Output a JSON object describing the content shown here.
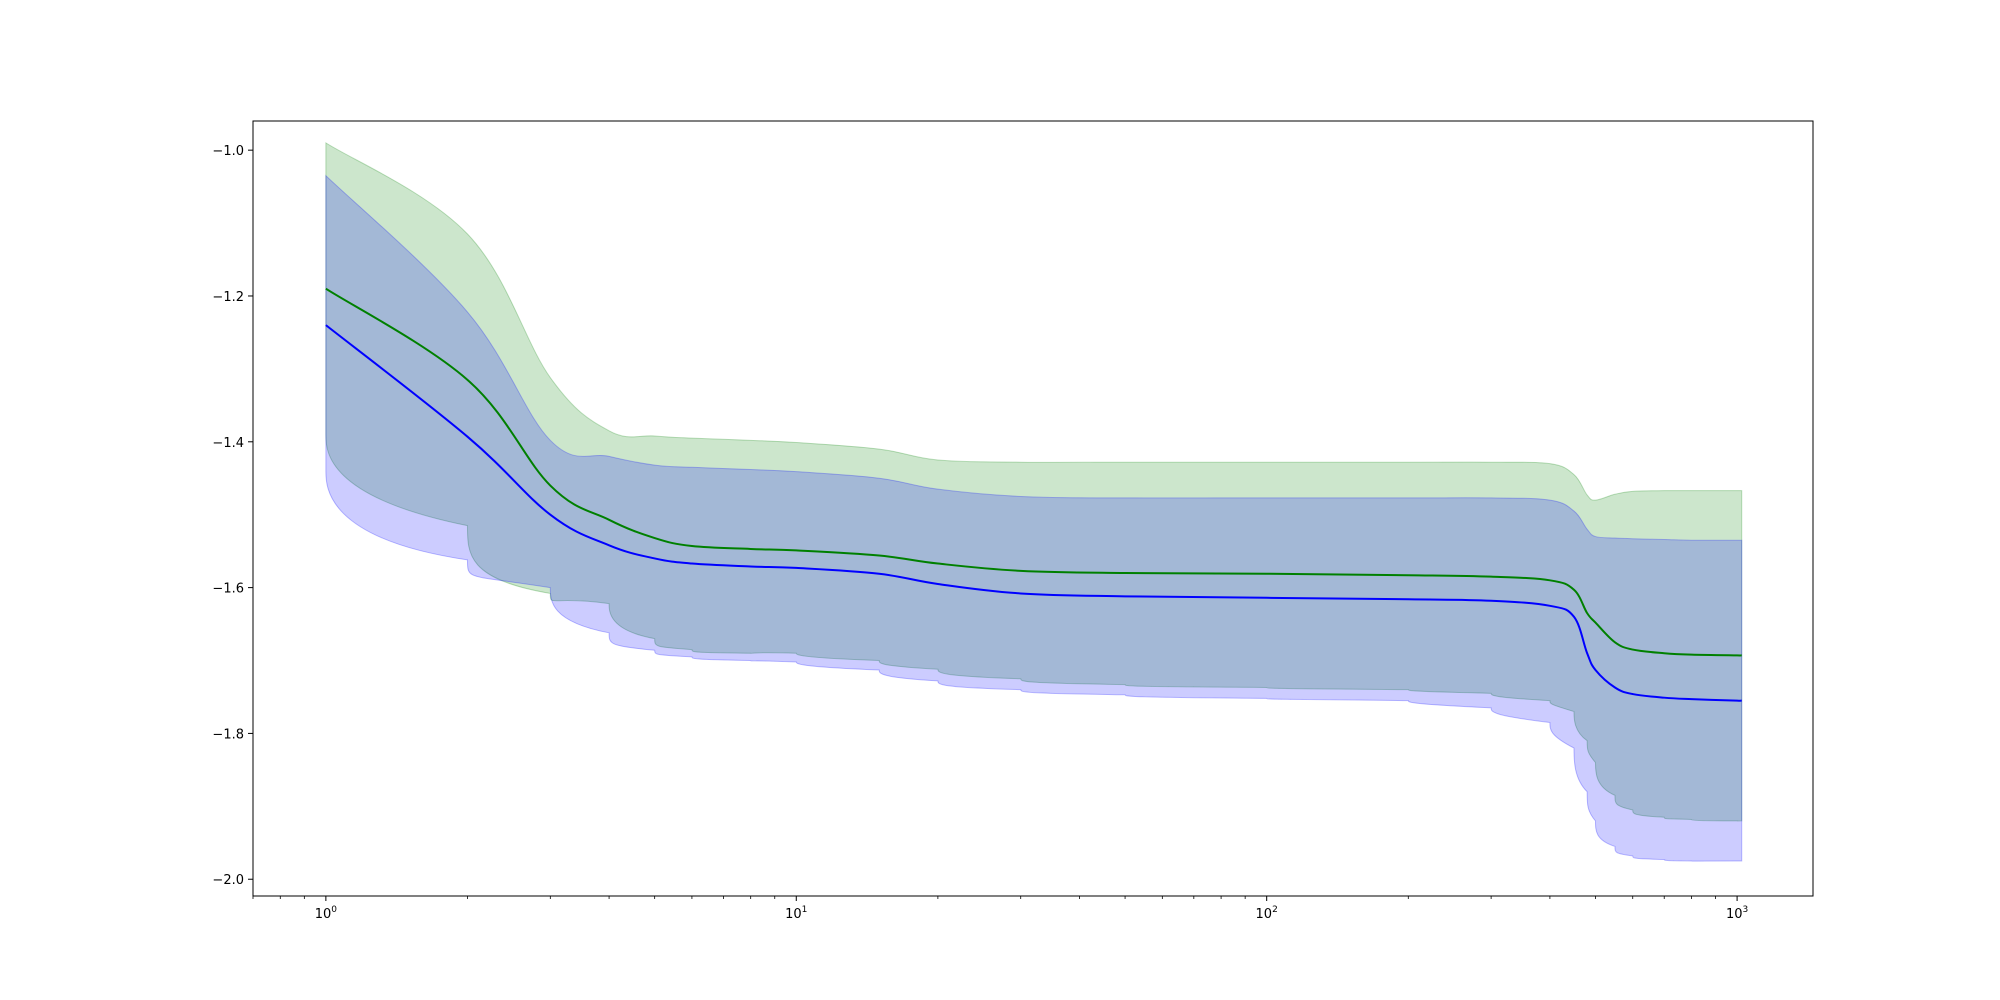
{
  "chart_data": {
    "type": "area",
    "x_scale": "log",
    "xlim": [
      0.7,
      1450
    ],
    "ylim": [
      -2.023,
      -0.96
    ],
    "x": [
      1,
      2,
      3,
      4,
      5,
      6,
      8,
      10,
      15,
      20,
      30,
      50,
      100,
      200,
      300,
      400,
      450,
      480,
      500,
      550,
      600,
      700,
      800,
      1000,
      1023
    ],
    "x_ticks": [
      {
        "value": 1,
        "base": "10",
        "exp": "0"
      },
      {
        "value": 10,
        "base": "10",
        "exp": "1"
      },
      {
        "value": 100,
        "base": "10",
        "exp": "2"
      },
      {
        "value": 1000,
        "base": "10",
        "exp": "3"
      }
    ],
    "y_ticks": [
      {
        "value": -1.0,
        "label": "−1.0"
      },
      {
        "value": -1.2,
        "label": "−1.2"
      },
      {
        "value": -1.4,
        "label": "−1.4"
      },
      {
        "value": -1.6,
        "label": "−1.6"
      },
      {
        "value": -1.8,
        "label": "−1.8"
      },
      {
        "value": -2.0,
        "label": "−2.0"
      }
    ],
    "grid": false,
    "series": [
      {
        "color": "#008000",
        "fill_color": "#008000",
        "fill_opacity": 0.2,
        "mean": [
          -1.19,
          -1.315,
          -1.46,
          -1.507,
          -1.532,
          -1.543,
          -1.547,
          -1.549,
          -1.556,
          -1.567,
          -1.577,
          -1.58,
          -1.581,
          -1.583,
          -1.585,
          -1.59,
          -1.603,
          -1.635,
          -1.648,
          -1.675,
          -1.685,
          -1.69,
          -1.692,
          -1.693,
          -1.693
        ],
        "upper": [
          -0.99,
          -1.115,
          -1.312,
          -1.385,
          -1.392,
          -1.395,
          -1.398,
          -1.401,
          -1.41,
          -1.425,
          -1.428,
          -1.428,
          -1.428,
          -1.428,
          -1.428,
          -1.43,
          -1.445,
          -1.473,
          -1.48,
          -1.472,
          -1.468,
          -1.467,
          -1.467,
          -1.467,
          -1.467
        ],
        "lower": [
          -1.39,
          -1.515,
          -1.608,
          -1.622,
          -1.67,
          -1.685,
          -1.69,
          -1.69,
          -1.7,
          -1.712,
          -1.725,
          -1.733,
          -1.737,
          -1.74,
          -1.745,
          -1.755,
          -1.77,
          -1.81,
          -1.84,
          -1.885,
          -1.905,
          -1.915,
          -1.918,
          -1.92,
          -1.92
        ]
      },
      {
        "color": "#0000ff",
        "fill_color": "#0000ff",
        "fill_opacity": 0.2,
        "mean": [
          -1.24,
          -1.393,
          -1.5,
          -1.542,
          -1.56,
          -1.567,
          -1.571,
          -1.573,
          -1.581,
          -1.595,
          -1.608,
          -1.612,
          -1.614,
          -1.616,
          -1.618,
          -1.625,
          -1.64,
          -1.69,
          -1.713,
          -1.737,
          -1.746,
          -1.751,
          -1.753,
          -1.755,
          -1.755
        ],
        "upper": [
          -1.035,
          -1.222,
          -1.398,
          -1.42,
          -1.432,
          -1.435,
          -1.438,
          -1.441,
          -1.45,
          -1.465,
          -1.475,
          -1.477,
          -1.477,
          -1.477,
          -1.477,
          -1.48,
          -1.495,
          -1.52,
          -1.53,
          -1.532,
          -1.533,
          -1.534,
          -1.535,
          -1.535,
          -1.535
        ],
        "lower": [
          -1.44,
          -1.562,
          -1.6,
          -1.662,
          -1.686,
          -1.695,
          -1.7,
          -1.702,
          -1.713,
          -1.728,
          -1.74,
          -1.747,
          -1.752,
          -1.755,
          -1.765,
          -1.785,
          -1.82,
          -1.88,
          -1.92,
          -1.955,
          -1.968,
          -1.973,
          -1.975,
          -1.975,
          -1.975
        ]
      }
    ]
  }
}
